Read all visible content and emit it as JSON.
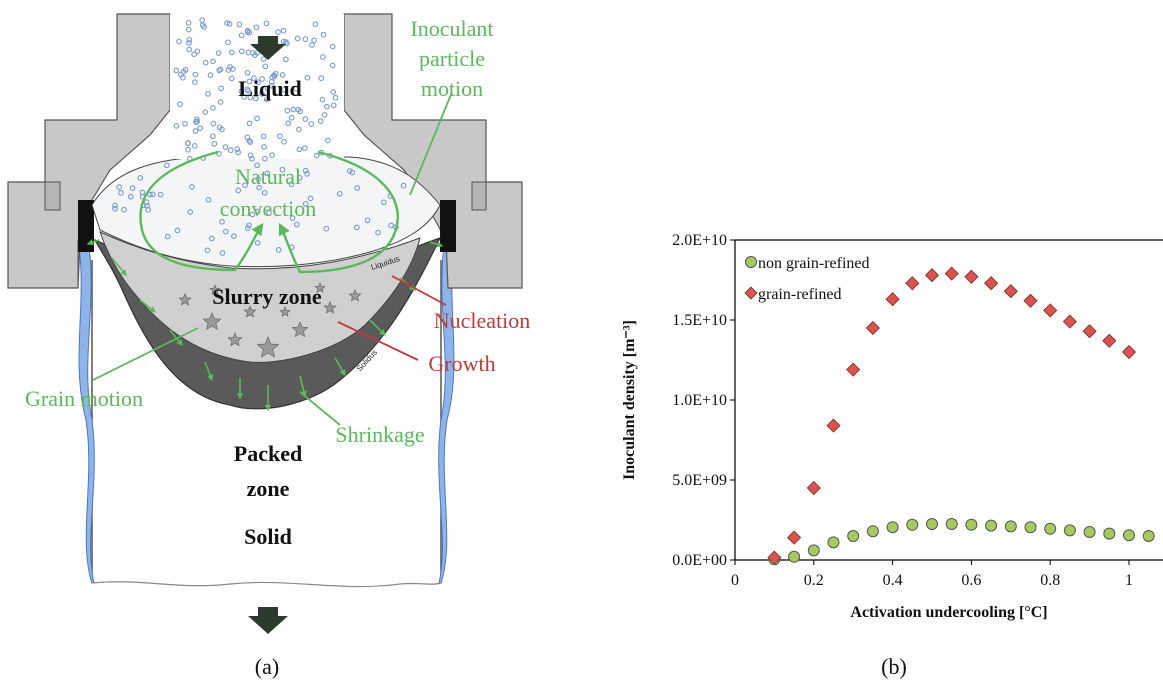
{
  "diagram": {
    "labels": {
      "liquid": "Liquid",
      "inoculant_motion": [
        "Inoculant",
        "particle",
        "motion"
      ],
      "natural_convection": [
        "Natural",
        "convection"
      ],
      "slurry_zone": "Slurry zone",
      "nucleation": "Nucleation",
      "growth": "Growth",
      "grain_motion": "Grain motion",
      "shrinkage": "Shrinkage",
      "packed_zone": [
        "Packed",
        "zone"
      ],
      "solid": "Solid",
      "liquidus": "Liquidus",
      "solidus": "Solidus"
    },
    "caption": "(a)",
    "colors": {
      "green": "#5cb85c",
      "red": "#c0393b",
      "mould": "#c8c8c8",
      "packed": "#5a5a5a",
      "coolant": "#8fb4e8"
    }
  },
  "chart_data": {
    "type": "scatter",
    "caption": "(b)",
    "xlabel": "Activation undercooling [°C]",
    "ylabel": "Inoculant density [m⁻³]",
    "xlim": [
      0,
      1.1
    ],
    "ylim": [
      0,
      20000000000.0
    ],
    "x_ticks": [
      0,
      0.2,
      0.4,
      0.6,
      0.8,
      1
    ],
    "x_tick_labels": [
      "0",
      "0.2",
      "0.4",
      "0.6",
      "0.8",
      "1"
    ],
    "y_ticks": [
      0,
      5000000000.0,
      10000000000.0,
      15000000000.0,
      20000000000.0
    ],
    "y_tick_labels": [
      "0.0E+00",
      "5.0E+09",
      "1.0E+10",
      "1.5E+10",
      "2.0E+10"
    ],
    "legend_position": "top-left",
    "series": [
      {
        "name": "non grain-refined",
        "marker": "circle",
        "color": "#a8c860",
        "x": [
          0.1,
          0.15,
          0.2,
          0.25,
          0.3,
          0.35,
          0.4,
          0.45,
          0.5,
          0.55,
          0.6,
          0.65,
          0.7,
          0.75,
          0.8,
          0.85,
          0.9,
          0.95,
          1.0,
          1.05
        ],
        "y": [
          50000000.0,
          200000000.0,
          600000000.0,
          1100000000.0,
          1500000000.0,
          1800000000.0,
          2050000000.0,
          2200000000.0,
          2250000000.0,
          2250000000.0,
          2200000000.0,
          2150000000.0,
          2100000000.0,
          2050000000.0,
          1950000000.0,
          1850000000.0,
          1750000000.0,
          1650000000.0,
          1550000000.0,
          1500000000.0
        ]
      },
      {
        "name": "grain-refined",
        "marker": "diamond",
        "color": "#d9534f",
        "x": [
          0.1,
          0.15,
          0.2,
          0.25,
          0.3,
          0.35,
          0.4,
          0.45,
          0.5,
          0.55,
          0.6,
          0.65,
          0.7,
          0.75,
          0.8,
          0.85,
          0.9,
          0.95,
          1.0
        ],
        "y": [
          150000000.0,
          1400000000.0,
          4500000000.0,
          8400000000.0,
          11900000000.0,
          14500000000.0,
          16300000000.0,
          17300000000.0,
          17800000000.0,
          17900000000.0,
          17700000000.0,
          17300000000.0,
          16800000000.0,
          16200000000.0,
          15600000000.0,
          14900000000.0,
          14300000000.0,
          13700000000.0,
          13000000000.0
        ]
      }
    ]
  }
}
